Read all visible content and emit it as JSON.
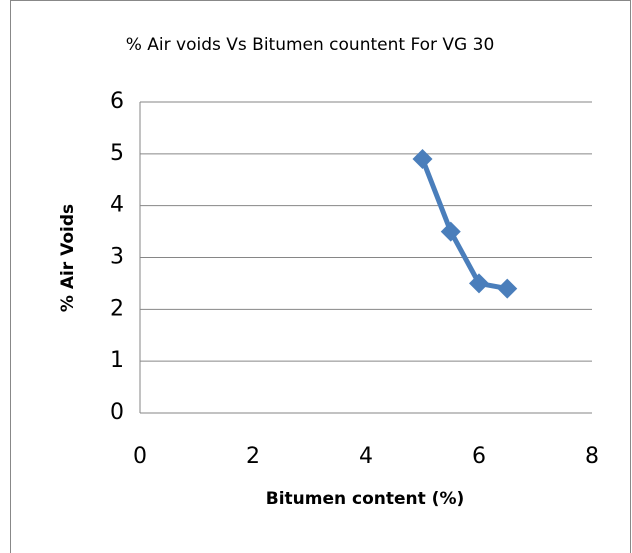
{
  "chart_data": {
    "type": "line",
    "title": "% Air voids Vs Bitumen countent For VG 30",
    "x_label": "Bitumen content (%)",
    "y_label": "% Air Voids",
    "x": [
      5,
      5.5,
      6,
      6.5
    ],
    "values": [
      4.9,
      3.5,
      2.5,
      2.4
    ],
    "color": "#4a7ebb",
    "marker": "diamond",
    "xlim": [
      0,
      8
    ],
    "xticks": [
      0,
      2,
      4,
      6,
      8
    ],
    "ylim": [
      0,
      6
    ],
    "yticks": [
      0,
      1,
      2,
      3,
      4,
      5,
      6
    ],
    "grid": true
  }
}
